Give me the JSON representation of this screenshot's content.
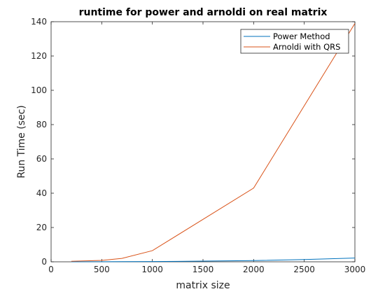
{
  "chart_data": {
    "type": "line",
    "title": "runtime for power and arnoldi on real matrix",
    "xlabel": "matrix size",
    "ylabel": "Run Time (sec)",
    "xlim": [
      0,
      3000
    ],
    "ylim": [
      0,
      140
    ],
    "xticks": [
      0,
      500,
      1000,
      1500,
      2000,
      2500,
      3000
    ],
    "yticks": [
      0,
      20,
      40,
      60,
      80,
      100,
      120,
      140
    ],
    "grid": false,
    "legend_position": "top-right",
    "series": [
      {
        "name": "Power Method",
        "color": "#0072BD",
        "x": [
          200,
          500,
          700,
          1000,
          1500,
          2000,
          2500,
          3000
        ],
        "y": [
          0.02,
          0.05,
          0.08,
          0.15,
          0.4,
          0.7,
          1.3,
          2.2
        ]
      },
      {
        "name": "Arnoldi with QRS",
        "color": "#D95319",
        "x": [
          200,
          500,
          700,
          1000,
          2000,
          3000
        ],
        "y": [
          0.3,
          0.8,
          2.0,
          6.5,
          43,
          139
        ]
      }
    ]
  }
}
